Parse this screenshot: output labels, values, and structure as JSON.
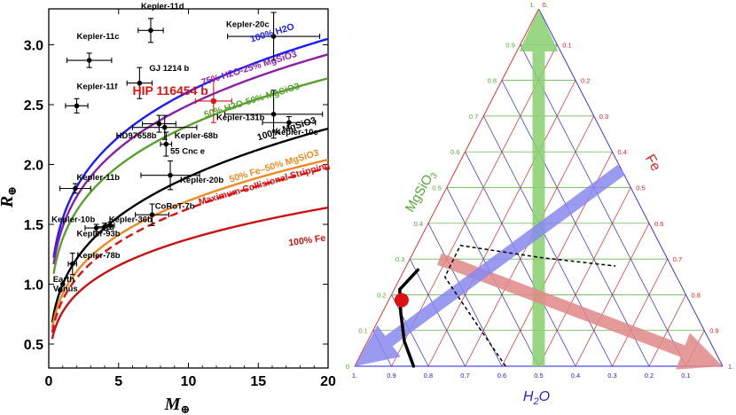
{
  "figure": {
    "left_panel": "mass-radius diagram",
    "right_panel": "ternary composition diagram"
  },
  "chart_data": [
    {
      "type": "scatter",
      "title": "",
      "xlabel": "M",
      "xlabel_sub": "⊕",
      "ylabel": "R",
      "ylabel_sub": "⊕",
      "xlim": [
        0,
        20
      ],
      "ylim": [
        0.3,
        3.3
      ],
      "xticks": [
        0,
        5,
        10,
        15,
        20
      ],
      "yticks": [
        0.5,
        1.0,
        1.5,
        2.0,
        2.5,
        3.0
      ],
      "xtick_labels": [
        "0",
        "5",
        "10",
        "15",
        "20"
      ],
      "ytick_labels": [
        "0.5",
        "1.0",
        "1.5",
        "2.0",
        "2.5",
        "3.0"
      ],
      "curves": [
        {
          "name": "100% H2O",
          "label": "100% H2O",
          "color": "#1a1aff",
          "dash": false,
          "r_at_20": 3.05,
          "r_at_1": 1.55,
          "x0": 0.35,
          "labelX": 14.5,
          "labelY": 3.02
        },
        {
          "name": "75% H2O-25% MgSiO3",
          "label": "75% H2O-25% MgSiO3",
          "color": "#8a1fa8",
          "dash": false,
          "r_at_20": 2.92,
          "r_at_1": 1.48,
          "x0": 0.35,
          "labelX": 11.0,
          "labelY": 2.66
        },
        {
          "name": "50% H2O-50% MgSiO3",
          "label": "50% H2O-50% MgSiO3",
          "color": "#5aa02c",
          "dash": false,
          "r_at_20": 2.72,
          "r_at_1": 1.38,
          "x0": 0.35,
          "labelX": 11.2,
          "labelY": 2.39
        },
        {
          "name": "100% MgSiO3",
          "label": "100% MgSiO3",
          "color": "#000000",
          "dash": false,
          "r_at_20": 2.3,
          "r_at_1": 1.0,
          "x0": 0.25,
          "labelX": 15.0,
          "labelY": 2.2
        },
        {
          "name": "50% Fe-50% MgSiO3",
          "label": "50% Fe–50% MgSiO3",
          "color": "#ee8a20",
          "dash": false,
          "r_at_20": 2.04,
          "r_at_1": 0.92,
          "x0": 0.25,
          "labelX": 13.0,
          "labelY": 1.85
        },
        {
          "name": "Maximum Collisional Stripping",
          "label": "Maximum Collisional Stripping",
          "color": "#dd1111",
          "dash": true,
          "r_at_20": 1.97,
          "r_at_1": 0.87,
          "x0": 0.25,
          "labelX": 10.8,
          "labelY": 1.66
        },
        {
          "name": "100% Fe",
          "label": "100% Fe",
          "color": "#cc1111",
          "dash": false,
          "r_at_20": 1.64,
          "r_at_1": 0.77,
          "x0": 0.25,
          "labelX": 17.2,
          "labelY": 1.32
        }
      ],
      "points": [
        {
          "name": "Kepler-11d",
          "x": 7.3,
          "y": 3.12,
          "xerr": 0.9,
          "yerr": 0.1,
          "color": "#000000",
          "labelX": 6.6,
          "labelY": 3.3
        },
        {
          "name": "Kepler-11c",
          "x": 2.9,
          "y": 2.87,
          "xerr": 1.6,
          "yerr": 0.06,
          "color": "#000000",
          "labelX": 2.0,
          "labelY": 3.05
        },
        {
          "name": "Kepler-20c",
          "x": 16.1,
          "y": 3.07,
          "xerr": 3.3,
          "yerr": 0.2,
          "color": "#000000",
          "labelX": 12.7,
          "labelY": 3.15
        },
        {
          "name": "GJ 1214 b",
          "x": 6.5,
          "y": 2.68,
          "xerr": 0.9,
          "yerr": 0.13,
          "color": "#000000",
          "labelX": 7.2,
          "labelY": 2.78
        },
        {
          "name": "Kepler-11f",
          "x": 2.0,
          "y": 2.49,
          "xerr": 0.8,
          "yerr": 0.06,
          "color": "#000000",
          "labelX": 2.0,
          "labelY": 2.63
        },
        {
          "name": "HIP 116454 b",
          "x": 11.8,
          "y": 2.53,
          "xerr": 1.3,
          "yerr": 0.18,
          "color": "#dd1111",
          "labelX": 6.0,
          "labelY": 2.58
        },
        {
          "name": "Kepler-131b",
          "x": 16.1,
          "y": 2.42,
          "xerr": 3.5,
          "yerr": 0.2,
          "color": "#000000",
          "labelX": 12.0,
          "labelY": 2.37
        },
        {
          "name": "Kepler-10c",
          "x": 17.2,
          "y": 2.35,
          "xerr": 1.9,
          "yerr": 0.05,
          "color": "#000000",
          "labelX": 16.2,
          "labelY": 2.25
        },
        {
          "name": "HD97658b",
          "x": 7.9,
          "y": 2.34,
          "xerr": 1.2,
          "yerr": 0.07,
          "color": "#000000",
          "labelX": 4.8,
          "labelY": 2.22
        },
        {
          "name": "Kepler-68b",
          "x": 8.3,
          "y": 2.31,
          "xerr": 2.3,
          "yerr": 0.1,
          "color": "#000000",
          "labelX": 9.0,
          "labelY": 2.22
        },
        {
          "name": "55 Cnc e",
          "x": 8.4,
          "y": 2.17,
          "xerr": 0.4,
          "yerr": 0.1,
          "color": "#000000",
          "labelX": 8.7,
          "labelY": 2.09
        },
        {
          "name": "Kepler-20b",
          "x": 8.7,
          "y": 1.91,
          "xerr": 2.1,
          "yerr": 0.12,
          "color": "#000000",
          "labelX": 9.4,
          "labelY": 1.85
        },
        {
          "name": "Kepler-11b",
          "x": 1.9,
          "y": 1.8,
          "xerr": 1.1,
          "yerr": 0.04,
          "color": "#000000",
          "labelX": 2.0,
          "labelY": 1.87
        },
        {
          "name": "CoRoT-7b",
          "x": 7.4,
          "y": 1.58,
          "xerr": 1.2,
          "yerr": 0.09,
          "color": "#000000",
          "labelX": 7.6,
          "labelY": 1.63
        },
        {
          "name": "Kepler-10b",
          "x": 3.4,
          "y": 1.47,
          "xerr": 0.8,
          "yerr": 0.03,
          "color": "#000000",
          "labelX": 0.2,
          "labelY": 1.52
        },
        {
          "name": "Kepler-36b",
          "x": 4.4,
          "y": 1.49,
          "xerr": 0.3,
          "yerr": 0.03,
          "color": "#000000",
          "labelX": 4.3,
          "labelY": 1.52
        },
        {
          "name": "Kepler-93b",
          "x": 4.0,
          "y": 1.48,
          "xerr": 0.6,
          "yerr": 0.03,
          "color": "#000000",
          "labelX": 2.0,
          "labelY": 1.4
        },
        {
          "name": "Kepler-78b",
          "x": 1.7,
          "y": 1.17,
          "xerr": 0.3,
          "yerr": 0.09,
          "color": "#000000",
          "labelX": 2.0,
          "labelY": 1.22
        },
        {
          "name": "Earth",
          "x": 1.0,
          "y": 1.0,
          "xerr": 0,
          "yerr": 0,
          "color": "#000000",
          "labelX": 0.3,
          "labelY": 1.02
        },
        {
          "name": "Venus",
          "x": 0.815,
          "y": 0.95,
          "xerr": 0,
          "yerr": 0,
          "color": "#000000",
          "labelX": 0.3,
          "labelY": 0.94
        }
      ]
    },
    {
      "type": "ternary",
      "title": "",
      "axes": {
        "left": "MgSiO",
        "left_sub": "3",
        "right": "Fe",
        "bottom": "H",
        "bottom_sub": "2",
        "bottom_suffix": "O"
      },
      "tick_labels": [
        "0",
        "0.1",
        "0.2",
        "0.3",
        "0.4",
        "0.5",
        "0.6",
        "0.7",
        "0.8",
        "0.9",
        "1."
      ],
      "top_labels": [
        "1.",
        "0."
      ],
      "grid_colors": {
        "h2o": "#2222dd",
        "mgsio3": "#55aa33",
        "fe": "#dd2222"
      },
      "arrows": [
        {
          "name": "green-arrow",
          "color": "#88d070",
          "from": [
            0.5,
            0.0,
            0.5
          ],
          "to": [
            0.0,
            1.0,
            0.0
          ]
        },
        {
          "name": "red-arrow",
          "color": "#e08888",
          "from": [
            0.62,
            0.3,
            0.08
          ],
          "to": [
            0.0,
            0.0,
            1.0
          ]
        },
        {
          "name": "blue-arrow",
          "color": "#8888ee",
          "from": [
            0.0,
            0.55,
            0.45
          ],
          "to": [
            1.0,
            0.0,
            0.0
          ]
        }
      ],
      "black_curve": [
        [
          0.84,
          0.0
        ],
        [
          0.83,
          0.07
        ],
        [
          0.8,
          0.15
        ],
        [
          0.77,
          0.215
        ],
        [
          0.73,
          0.295
        ]
      ],
      "dashed_curve": [
        [
          0.59,
          0.0
        ],
        [
          0.61,
          0.12
        ],
        [
          0.63,
          0.25
        ],
        [
          0.66,
          0.42
        ],
        [
          0.69,
          0.55
        ],
        [
          0.71,
          0.675
        ]
      ],
      "red_point": {
        "h2o": 0.78,
        "mgsio3": 0.185,
        "fe": 0.035,
        "color": "#dd1111"
      }
    }
  ]
}
